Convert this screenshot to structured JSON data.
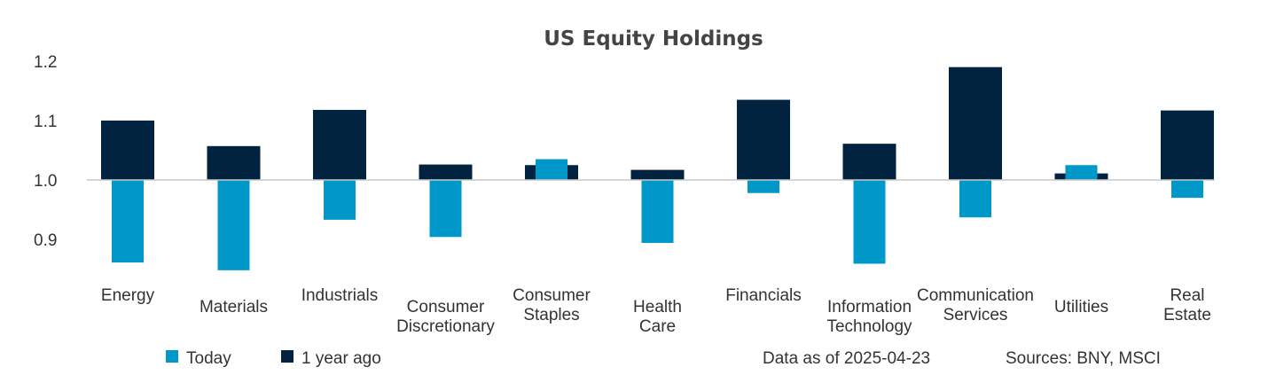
{
  "chart_data": {
    "type": "bar",
    "title": "US Equity Holdings",
    "baseline": 1.0,
    "ylim": [
      0.85,
      1.2
    ],
    "yticks": [
      "1.2",
      "1.1",
      "1.0",
      "0.9"
    ],
    "categories": [
      [
        "Energy"
      ],
      [
        "Materials"
      ],
      [
        "Industrials"
      ],
      [
        "Consumer",
        "Discretionary"
      ],
      [
        "Consumer",
        "Staples"
      ],
      [
        "Health",
        "Care"
      ],
      [
        "Financials"
      ],
      [
        "Information",
        "Technology"
      ],
      [
        "Communication",
        "Services"
      ],
      [
        "Utilities"
      ],
      [
        "Real",
        "Estate"
      ]
    ],
    "series": [
      {
        "name": "1 year ago",
        "color": "#012340",
        "values": [
          1.1,
          1.057,
          1.118,
          1.026,
          1.025,
          1.017,
          1.135,
          1.061,
          1.19,
          1.011,
          1.117
        ]
      },
      {
        "name": "Today",
        "color": "#0098C8",
        "values": [
          0.861,
          0.848,
          0.933,
          0.904,
          1.035,
          0.894,
          0.978,
          0.859,
          0.937,
          1.025,
          0.97
        ]
      }
    ],
    "legend": [
      "Today",
      "1 year ago"
    ],
    "xlabel": "",
    "ylabel": ""
  },
  "footer": {
    "data_date": "Data as of 2025-04-23",
    "sources": "Sources:  BNY, MSCI"
  }
}
